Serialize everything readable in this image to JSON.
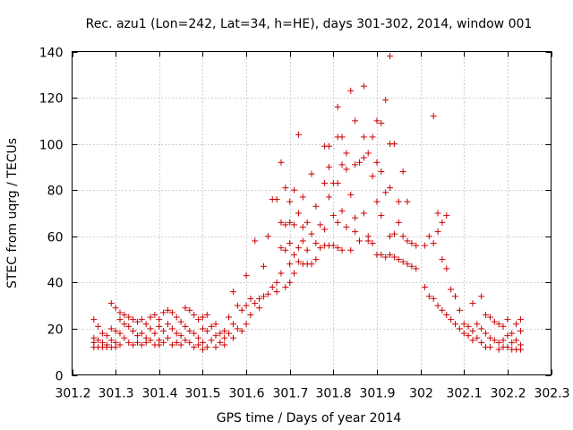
{
  "chart_data": {
    "type": "scatter",
    "title": "Rec. azu1 (Lon=242, Lat=34, h=HE), days 301-302, 2014, window 001",
    "xlabel": "GPS time / Days of year 2014",
    "ylabel": "STEC from uqrg / TECUs",
    "xlim": [
      301.2,
      302.3
    ],
    "ylim": [
      0,
      140
    ],
    "x_ticks": [
      {
        "value": 301.2,
        "label": "301.2"
      },
      {
        "value": 301.3,
        "label": "301.3"
      },
      {
        "value": 301.4,
        "label": "301.4"
      },
      {
        "value": 301.5,
        "label": "301.5"
      },
      {
        "value": 301.6,
        "label": "301.6"
      },
      {
        "value": 301.7,
        "label": "301.7"
      },
      {
        "value": 301.8,
        "label": "301.8"
      },
      {
        "value": 301.9,
        "label": "301.9"
      },
      {
        "value": 302.0,
        "label": "302"
      },
      {
        "value": 302.1,
        "label": "302.1"
      },
      {
        "value": 302.2,
        "label": "302.2"
      },
      {
        "value": 302.3,
        "label": "302.3"
      }
    ],
    "y_ticks": [
      {
        "value": 0,
        "label": "0"
      },
      {
        "value": 20,
        "label": "20"
      },
      {
        "value": 40,
        "label": "40"
      },
      {
        "value": 60,
        "label": "60"
      },
      {
        "value": 80,
        "label": "80"
      },
      {
        "value": 100,
        "label": "100"
      },
      {
        "value": 120,
        "label": "120"
      },
      {
        "value": 140,
        "label": "140"
      }
    ],
    "grid": true,
    "marker": "+",
    "color": "#cc0000",
    "points": [
      [
        301.25,
        24
      ],
      [
        301.25,
        16
      ],
      [
        301.25,
        14
      ],
      [
        301.25,
        12
      ],
      [
        301.26,
        21
      ],
      [
        301.26,
        15
      ],
      [
        301.26,
        12
      ],
      [
        301.27,
        18
      ],
      [
        301.27,
        14
      ],
      [
        301.27,
        12
      ],
      [
        301.28,
        17
      ],
      [
        301.28,
        13
      ],
      [
        301.28,
        12
      ],
      [
        301.29,
        31
      ],
      [
        301.29,
        20
      ],
      [
        301.29,
        15
      ],
      [
        301.29,
        12
      ],
      [
        301.3,
        29
      ],
      [
        301.3,
        19
      ],
      [
        301.3,
        14
      ],
      [
        301.3,
        12
      ],
      [
        301.31,
        27
      ],
      [
        301.31,
        24
      ],
      [
        301.31,
        18
      ],
      [
        301.31,
        13
      ],
      [
        301.32,
        26
      ],
      [
        301.32,
        22
      ],
      [
        301.32,
        16
      ],
      [
        301.33,
        25
      ],
      [
        301.33,
        21
      ],
      [
        301.33,
        14
      ],
      [
        301.34,
        24
      ],
      [
        301.34,
        19
      ],
      [
        301.34,
        13
      ],
      [
        301.35,
        23
      ],
      [
        301.35,
        17
      ],
      [
        301.35,
        14
      ],
      [
        301.36,
        24
      ],
      [
        301.36,
        18
      ],
      [
        301.36,
        13
      ],
      [
        301.37,
        22
      ],
      [
        301.37,
        16
      ],
      [
        301.37,
        14
      ],
      [
        301.38,
        25
      ],
      [
        301.38,
        20
      ],
      [
        301.38,
        15
      ],
      [
        301.39,
        26
      ],
      [
        301.39,
        18
      ],
      [
        301.39,
        13
      ],
      [
        301.4,
        24
      ],
      [
        301.4,
        21
      ],
      [
        301.4,
        15
      ],
      [
        301.4,
        13
      ],
      [
        301.41,
        27
      ],
      [
        301.41,
        19
      ],
      [
        301.41,
        14
      ],
      [
        301.42,
        28
      ],
      [
        301.42,
        22
      ],
      [
        301.42,
        16
      ],
      [
        301.43,
        27
      ],
      [
        301.43,
        20
      ],
      [
        301.43,
        13
      ],
      [
        301.44,
        25
      ],
      [
        301.44,
        18
      ],
      [
        301.44,
        14
      ],
      [
        301.45,
        23
      ],
      [
        301.45,
        17
      ],
      [
        301.45,
        13
      ],
      [
        301.46,
        29
      ],
      [
        301.46,
        21
      ],
      [
        301.46,
        15
      ],
      [
        301.47,
        28
      ],
      [
        301.47,
        19
      ],
      [
        301.47,
        14
      ],
      [
        301.48,
        26
      ],
      [
        301.48,
        18
      ],
      [
        301.48,
        12
      ],
      [
        301.49,
        24
      ],
      [
        301.49,
        16
      ],
      [
        301.49,
        13
      ],
      [
        301.5,
        25
      ],
      [
        301.5,
        20
      ],
      [
        301.5,
        14
      ],
      [
        301.5,
        11
      ],
      [
        301.51,
        26
      ],
      [
        301.51,
        19
      ],
      [
        301.51,
        12
      ],
      [
        301.52,
        21
      ],
      [
        301.52,
        15
      ],
      [
        301.53,
        22
      ],
      [
        301.53,
        17
      ],
      [
        301.53,
        12
      ],
      [
        301.54,
        18
      ],
      [
        301.54,
        14
      ],
      [
        301.55,
        19
      ],
      [
        301.55,
        16
      ],
      [
        301.55,
        13
      ],
      [
        301.56,
        25
      ],
      [
        301.56,
        18
      ],
      [
        301.57,
        36
      ],
      [
        301.57,
        22
      ],
      [
        301.57,
        16
      ],
      [
        301.58,
        30
      ],
      [
        301.58,
        20
      ],
      [
        301.59,
        28
      ],
      [
        301.59,
        19
      ],
      [
        301.6,
        43
      ],
      [
        301.6,
        30
      ],
      [
        301.6,
        22
      ],
      [
        301.61,
        33
      ],
      [
        301.61,
        26
      ],
      [
        301.62,
        58
      ],
      [
        301.62,
        31
      ],
      [
        301.63,
        33
      ],
      [
        301.63,
        29
      ],
      [
        301.64,
        47
      ],
      [
        301.64,
        34
      ],
      [
        301.65,
        60
      ],
      [
        301.65,
        35
      ],
      [
        301.66,
        76
      ],
      [
        301.66,
        38
      ],
      [
        301.67,
        76
      ],
      [
        301.67,
        40
      ],
      [
        301.67,
        36
      ],
      [
        301.68,
        92
      ],
      [
        301.68,
        66
      ],
      [
        301.68,
        55
      ],
      [
        301.68,
        44
      ],
      [
        301.69,
        81
      ],
      [
        301.69,
        65
      ],
      [
        301.69,
        54
      ],
      [
        301.69,
        38
      ],
      [
        301.7,
        75
      ],
      [
        301.7,
        66
      ],
      [
        301.7,
        57
      ],
      [
        301.7,
        48
      ],
      [
        301.7,
        40
      ],
      [
        301.71,
        80
      ],
      [
        301.71,
        65
      ],
      [
        301.71,
        52
      ],
      [
        301.71,
        44
      ],
      [
        301.72,
        104
      ],
      [
        301.72,
        70
      ],
      [
        301.72,
        55
      ],
      [
        301.72,
        49
      ],
      [
        301.73,
        77
      ],
      [
        301.73,
        64
      ],
      [
        301.73,
        58
      ],
      [
        301.73,
        48
      ],
      [
        301.74,
        66
      ],
      [
        301.74,
        54
      ],
      [
        301.74,
        48
      ],
      [
        301.75,
        87
      ],
      [
        301.75,
        61
      ],
      [
        301.75,
        48
      ],
      [
        301.76,
        73
      ],
      [
        301.76,
        57
      ],
      [
        301.76,
        50
      ],
      [
        301.77,
        65
      ],
      [
        301.77,
        55
      ],
      [
        301.78,
        83
      ],
      [
        301.78,
        99
      ],
      [
        301.78,
        63
      ],
      [
        301.78,
        56
      ],
      [
        301.79,
        99
      ],
      [
        301.79,
        90
      ],
      [
        301.79,
        77
      ],
      [
        301.79,
        56
      ],
      [
        301.8,
        83
      ],
      [
        301.8,
        69
      ],
      [
        301.8,
        56
      ],
      [
        301.81,
        116
      ],
      [
        301.81,
        103
      ],
      [
        301.81,
        83
      ],
      [
        301.81,
        66
      ],
      [
        301.81,
        55
      ],
      [
        301.82,
        103
      ],
      [
        301.82,
        91
      ],
      [
        301.82,
        71
      ],
      [
        301.82,
        54
      ],
      [
        301.83,
        96
      ],
      [
        301.83,
        89
      ],
      [
        301.83,
        64
      ],
      [
        301.84,
        123
      ],
      [
        301.84,
        78
      ],
      [
        301.84,
        54
      ],
      [
        301.85,
        110
      ],
      [
        301.85,
        91
      ],
      [
        301.85,
        68
      ],
      [
        301.85,
        62
      ],
      [
        301.86,
        92
      ],
      [
        301.86,
        58
      ],
      [
        301.87,
        125
      ],
      [
        301.87,
        103
      ],
      [
        301.87,
        94
      ],
      [
        301.87,
        70
      ],
      [
        301.88,
        96
      ],
      [
        301.88,
        60
      ],
      [
        301.88,
        58
      ],
      [
        301.89,
        103
      ],
      [
        301.89,
        86
      ],
      [
        301.89,
        57
      ],
      [
        301.9,
        110
      ],
      [
        301.9,
        92
      ],
      [
        301.9,
        75
      ],
      [
        301.9,
        52
      ],
      [
        301.91,
        109
      ],
      [
        301.91,
        88
      ],
      [
        301.91,
        69
      ],
      [
        301.91,
        52
      ],
      [
        301.92,
        119
      ],
      [
        301.92,
        79
      ],
      [
        301.92,
        51
      ],
      [
        301.93,
        138
      ],
      [
        301.93,
        100
      ],
      [
        301.93,
        81
      ],
      [
        301.93,
        60
      ],
      [
        301.93,
        52
      ],
      [
        301.94,
        100
      ],
      [
        301.94,
        61
      ],
      [
        301.94,
        51
      ],
      [
        301.95,
        75
      ],
      [
        301.95,
        66
      ],
      [
        301.95,
        50
      ],
      [
        301.96,
        88
      ],
      [
        301.96,
        60
      ],
      [
        301.96,
        49
      ],
      [
        301.97,
        75
      ],
      [
        301.97,
        58
      ],
      [
        301.97,
        48
      ],
      [
        301.98,
        57
      ],
      [
        301.98,
        47
      ],
      [
        301.99,
        56
      ],
      [
        301.99,
        46
      ],
      [
        302.01,
        38
      ],
      [
        302.01,
        56
      ],
      [
        302.02,
        60
      ],
      [
        302.02,
        34
      ],
      [
        302.03,
        112
      ],
      [
        302.03,
        57
      ],
      [
        302.03,
        33
      ],
      [
        302.04,
        70
      ],
      [
        302.04,
        62
      ],
      [
        302.04,
        30
      ],
      [
        302.05,
        66
      ],
      [
        302.05,
        50
      ],
      [
        302.05,
        28
      ],
      [
        302.06,
        69
      ],
      [
        302.06,
        46
      ],
      [
        302.06,
        26
      ],
      [
        302.07,
        37
      ],
      [
        302.07,
        24
      ],
      [
        302.08,
        34
      ],
      [
        302.08,
        22
      ],
      [
        302.09,
        28
      ],
      [
        302.09,
        20
      ],
      [
        302.1,
        22
      ],
      [
        302.1,
        18
      ],
      [
        302.11,
        21
      ],
      [
        302.11,
        17
      ],
      [
        302.12,
        31
      ],
      [
        302.12,
        19
      ],
      [
        302.12,
        15
      ],
      [
        302.13,
        22
      ],
      [
        302.13,
        16
      ],
      [
        302.14,
        34
      ],
      [
        302.14,
        20
      ],
      [
        302.14,
        14
      ],
      [
        302.15,
        26
      ],
      [
        302.15,
        18
      ],
      [
        302.15,
        12
      ],
      [
        302.16,
        25
      ],
      [
        302.16,
        16
      ],
      [
        302.16,
        12
      ],
      [
        302.17,
        23
      ],
      [
        302.17,
        15
      ],
      [
        302.18,
        22
      ],
      [
        302.18,
        14
      ],
      [
        302.18,
        11
      ],
      [
        302.19,
        21
      ],
      [
        302.19,
        15
      ],
      [
        302.19,
        12
      ],
      [
        302.2,
        24
      ],
      [
        302.2,
        17
      ],
      [
        302.2,
        12
      ],
      [
        302.21,
        18
      ],
      [
        302.21,
        14
      ],
      [
        302.21,
        11
      ],
      [
        302.22,
        22
      ],
      [
        302.22,
        15
      ],
      [
        302.22,
        11
      ],
      [
        302.23,
        24
      ],
      [
        302.23,
        19
      ],
      [
        302.23,
        13
      ],
      [
        302.23,
        11
      ]
    ]
  }
}
